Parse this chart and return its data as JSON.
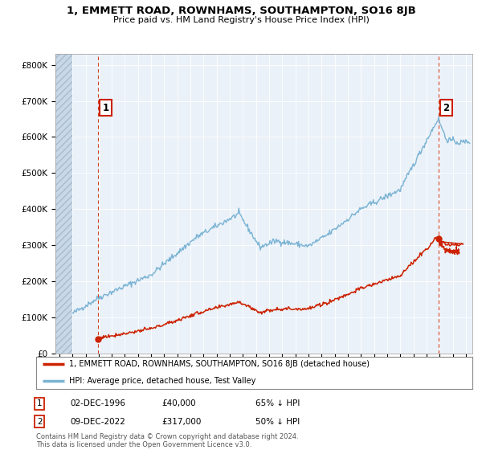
{
  "title": "1, EMMETT ROAD, ROWNHAMS, SOUTHAMPTON, SO16 8JB",
  "subtitle": "Price paid vs. HM Land Registry's House Price Index (HPI)",
  "hpi_color": "#7ab3d4",
  "price_color": "#cc2200",
  "plot_bg": "#eaf1f8",
  "fig_bg": "#ffffff",
  "hatch_color": "#c8d8e8",
  "grid_color": "#ffffff",
  "ylim": [
    0,
    830000
  ],
  "yticks": [
    0,
    100000,
    200000,
    300000,
    400000,
    500000,
    600000,
    700000,
    800000
  ],
  "legend_line1": "1, EMMETT ROAD, ROWNHAMS, SOUTHAMPTON, SO16 8JB (detached house)",
  "legend_line2": "HPI: Average price, detached house, Test Valley",
  "sale1_label": "1",
  "sale1_date": "02-DEC-1996",
  "sale1_price": "£40,000",
  "sale1_hpi": "65% ↓ HPI",
  "sale2_label": "2",
  "sale2_date": "09-DEC-2022",
  "sale2_price": "£317,000",
  "sale2_hpi": "50% ↓ HPI",
  "footnote1": "Contains HM Land Registry data © Crown copyright and database right 2024.",
  "footnote2": "This data is licensed under the Open Government Licence v3.0.",
  "sale1_x": 1996.92,
  "sale1_y": 40000,
  "sale2_x": 2022.92,
  "sale2_y": 317000,
  "xmin": 1993.7,
  "xmax": 2025.5,
  "hatch_end": 1995.0
}
